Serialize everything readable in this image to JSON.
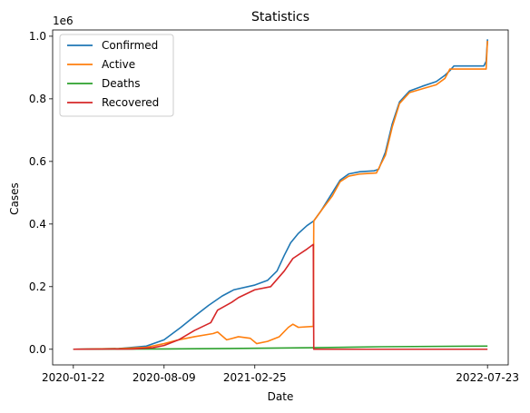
{
  "chart_data": {
    "type": "line",
    "title": "Statistics",
    "xlabel": "Date",
    "ylabel": "Cases",
    "y_multiplier_label": "1e6",
    "x_ticks": [
      "2020-01-22",
      "2020-08-09",
      "2021-02-25",
      "2022-07-23"
    ],
    "x_range": [
      "2020-01-22",
      "2022-07-23"
    ],
    "y_ticks": [
      0.0,
      0.2,
      0.4,
      0.6,
      0.8,
      1.0
    ],
    "y_tick_labels": [
      "0.0",
      "0.2",
      "0.4",
      "0.6",
      "0.8",
      "1.0"
    ],
    "ylim": [
      -0.05,
      1.02
    ],
    "grid": false,
    "legend_position": "top-left",
    "series": [
      {
        "name": "Confirmed",
        "color": "#1f77b4",
        "points": [
          [
            "2020-01-22",
            0.0
          ],
          [
            "2020-05-01",
            0.002
          ],
          [
            "2020-07-01",
            0.01
          ],
          [
            "2020-08-09",
            0.03
          ],
          [
            "2020-09-15",
            0.07
          ],
          [
            "2020-10-15",
            0.105
          ],
          [
            "2020-11-15",
            0.14
          ],
          [
            "2020-12-15",
            0.17
          ],
          [
            "2021-01-10",
            0.19
          ],
          [
            "2021-02-25",
            0.205
          ],
          [
            "2021-03-25",
            0.22
          ],
          [
            "2021-04-15",
            0.25
          ],
          [
            "2021-05-01",
            0.3
          ],
          [
            "2021-05-15",
            0.34
          ],
          [
            "2021-06-01",
            0.37
          ],
          [
            "2021-06-20",
            0.395
          ],
          [
            "2021-07-05",
            0.41
          ],
          [
            "2021-07-20",
            0.44
          ],
          [
            "2021-08-15",
            0.5
          ],
          [
            "2021-09-01",
            0.54
          ],
          [
            "2021-09-20",
            0.56
          ],
          [
            "2021-10-15",
            0.567
          ],
          [
            "2021-11-15",
            0.57
          ],
          [
            "2021-11-25",
            0.575
          ],
          [
            "2021-12-10",
            0.63
          ],
          [
            "2021-12-25",
            0.72
          ],
          [
            "2022-01-10",
            0.79
          ],
          [
            "2022-02-01",
            0.825
          ],
          [
            "2022-03-01",
            0.84
          ],
          [
            "2022-04-01",
            0.855
          ],
          [
            "2022-04-20",
            0.875
          ],
          [
            "2022-05-01",
            0.89
          ],
          [
            "2022-05-10",
            0.905
          ],
          [
            "2022-07-15",
            0.905
          ],
          [
            "2022-07-20",
            0.92
          ],
          [
            "2022-07-23",
            0.99
          ]
        ]
      },
      {
        "name": "Active",
        "color": "#ff7f0e",
        "points": [
          [
            "2020-01-22",
            0.0
          ],
          [
            "2020-05-01",
            0.002
          ],
          [
            "2020-07-01",
            0.006
          ],
          [
            "2020-08-09",
            0.018
          ],
          [
            "2020-09-10",
            0.03
          ],
          [
            "2020-10-15",
            0.04
          ],
          [
            "2020-11-25",
            0.05
          ],
          [
            "2020-12-05",
            0.055
          ],
          [
            "2020-12-25",
            0.03
          ],
          [
            "2021-01-20",
            0.04
          ],
          [
            "2021-02-15",
            0.035
          ],
          [
            "2021-03-01",
            0.018
          ],
          [
            "2021-03-25",
            0.025
          ],
          [
            "2021-04-20",
            0.04
          ],
          [
            "2021-05-10",
            0.07
          ],
          [
            "2021-05-20",
            0.08
          ],
          [
            "2021-06-01",
            0.07
          ],
          [
            "2021-07-04",
            0.073
          ],
          [
            "2021-07-05",
            0.41
          ],
          [
            "2021-07-20",
            0.44
          ],
          [
            "2021-08-15",
            0.49
          ],
          [
            "2021-09-01",
            0.535
          ],
          [
            "2021-09-20",
            0.553
          ],
          [
            "2021-10-15",
            0.56
          ],
          [
            "2021-11-20",
            0.563
          ],
          [
            "2021-12-10",
            0.62
          ],
          [
            "2021-12-25",
            0.71
          ],
          [
            "2022-01-10",
            0.785
          ],
          [
            "2022-02-01",
            0.82
          ],
          [
            "2022-03-01",
            0.832
          ],
          [
            "2022-04-01",
            0.845
          ],
          [
            "2022-04-20",
            0.865
          ],
          [
            "2022-05-01",
            0.895
          ],
          [
            "2022-07-20",
            0.895
          ],
          [
            "2022-07-22",
            0.96
          ],
          [
            "2022-07-23",
            0.985
          ]
        ]
      },
      {
        "name": "Deaths",
        "color": "#2ca02c",
        "points": [
          [
            "2020-01-22",
            0.0
          ],
          [
            "2020-08-09",
            0.001
          ],
          [
            "2021-02-25",
            0.003
          ],
          [
            "2021-07-05",
            0.005
          ],
          [
            "2021-12-01",
            0.008
          ],
          [
            "2022-07-23",
            0.01
          ]
        ]
      },
      {
        "name": "Recovered",
        "color": "#d62728",
        "points": [
          [
            "2020-01-22",
            0.0
          ],
          [
            "2020-06-01",
            0.001
          ],
          [
            "2020-07-15",
            0.005
          ],
          [
            "2020-08-09",
            0.012
          ],
          [
            "2020-09-10",
            0.03
          ],
          [
            "2020-10-15",
            0.06
          ],
          [
            "2020-11-20",
            0.085
          ],
          [
            "2020-12-05",
            0.125
          ],
          [
            "2021-01-05",
            0.15
          ],
          [
            "2021-01-20",
            0.165
          ],
          [
            "2021-02-25",
            0.19
          ],
          [
            "2021-04-01",
            0.2
          ],
          [
            "2021-05-01",
            0.25
          ],
          [
            "2021-05-20",
            0.29
          ],
          [
            "2021-06-20",
            0.32
          ],
          [
            "2021-07-04",
            0.335
          ],
          [
            "2021-07-05",
            0.0
          ],
          [
            "2022-07-23",
            0.0
          ]
        ]
      }
    ]
  }
}
